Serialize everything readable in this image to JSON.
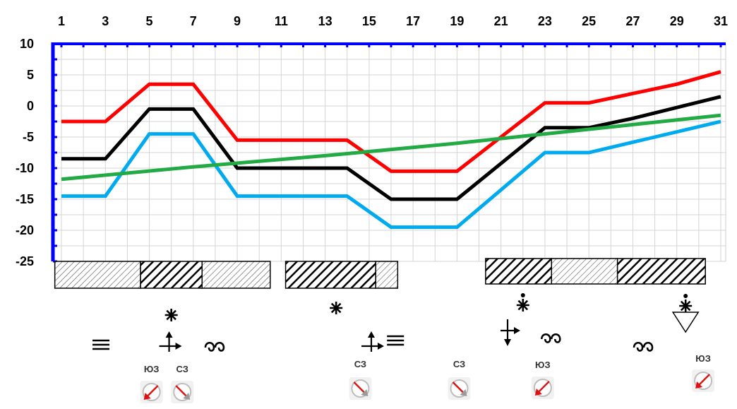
{
  "chart_data": {
    "type": "line",
    "title": "",
    "xlabel": "",
    "ylabel": "",
    "x": [
      1,
      3,
      5,
      7,
      9,
      11,
      13,
      15,
      17,
      19,
      21,
      23,
      25,
      27,
      29,
      31
    ],
    "x_tick_labels": [
      "1",
      "3",
      "5",
      "7",
      "9",
      "11",
      "13",
      "15",
      "17",
      "19",
      "21",
      "23",
      "25",
      "27",
      "29",
      "31"
    ],
    "xlim": [
      1,
      31
    ],
    "ylim": [
      -25,
      10
    ],
    "y_ticks": [
      10,
      5,
      0,
      -5,
      -10,
      -15,
      -20,
      -25
    ],
    "y_tick_labels": [
      "10",
      "5",
      "0",
      "-5",
      "-10",
      "-15",
      "-20",
      "-25"
    ],
    "grid": true,
    "legend": "none",
    "series": [
      {
        "color": "#ff0000",
        "points": [
          [
            1,
            -2.5
          ],
          [
            3,
            -2.5
          ],
          [
            5,
            3.5
          ],
          [
            7,
            3.5
          ],
          [
            9,
            -5.5
          ],
          [
            11,
            -5.5
          ],
          [
            13,
            -5.5
          ],
          [
            14,
            -5.5
          ],
          [
            16,
            -10.5
          ],
          [
            19,
            -10.5
          ],
          [
            23,
            0.5
          ],
          [
            25,
            0.5
          ],
          [
            29,
            3.5
          ],
          [
            31,
            5.5
          ]
        ]
      },
      {
        "color": "#000000",
        "points": [
          [
            1,
            -8.5
          ],
          [
            3,
            -8.5
          ],
          [
            5,
            -0.5
          ],
          [
            7,
            -0.5
          ],
          [
            9,
            -10
          ],
          [
            11,
            -10
          ],
          [
            13,
            -10
          ],
          [
            14,
            -10
          ],
          [
            16,
            -15
          ],
          [
            19,
            -15
          ],
          [
            23,
            -3.5
          ],
          [
            25,
            -3.5
          ],
          [
            27,
            -2
          ],
          [
            31,
            1.5
          ]
        ]
      },
      {
        "color": "#00aaee",
        "points": [
          [
            1,
            -14.5
          ],
          [
            3,
            -14.5
          ],
          [
            5,
            -4.5
          ],
          [
            7,
            -4.5
          ],
          [
            9,
            -14.5
          ],
          [
            11,
            -14.5
          ],
          [
            13,
            -14.5
          ],
          [
            14,
            -14.5
          ],
          [
            16,
            -19.5
          ],
          [
            19,
            -19.5
          ],
          [
            23,
            -7.5
          ],
          [
            25,
            -7.5
          ],
          [
            28,
            -5
          ],
          [
            31,
            -2.5
          ]
        ]
      },
      {
        "color": "#22aa44",
        "points": [
          [
            1,
            -11.8
          ],
          [
            7,
            -9.8
          ],
          [
            13,
            -8
          ],
          [
            19,
            -6
          ],
          [
            23,
            -4.5
          ],
          [
            27,
            -3
          ],
          [
            31,
            -1.5
          ]
        ]
      }
    ],
    "weather_bars": [
      {
        "start": 0.7,
        "end": 4.6,
        "pattern": "light"
      },
      {
        "start": 4.6,
        "end": 7.4,
        "pattern": "dark"
      },
      {
        "start": 7.4,
        "end": 10.5,
        "pattern": "light"
      },
      {
        "start": 11.2,
        "end": 15.3,
        "pattern": "dark"
      },
      {
        "start": 15.3,
        "end": 16.3,
        "pattern": "light"
      },
      {
        "start": 20.3,
        "end": 23.3,
        "pattern": "dark"
      },
      {
        "start": 23.3,
        "end": 26.3,
        "pattern": "light"
      },
      {
        "start": 26.3,
        "end": 30.3,
        "pattern": "dark"
      }
    ],
    "weather_icons": [
      {
        "x": 2.8,
        "type": "fog"
      },
      {
        "x": 6,
        "type": "snow"
      },
      {
        "x": 5.9,
        "type": "temp-rise"
      },
      {
        "x": 8,
        "type": "drift"
      },
      {
        "x": 13.5,
        "type": "snow"
      },
      {
        "x": 15.1,
        "type": "temp-rise"
      },
      {
        "x": 16.2,
        "type": "fog"
      },
      {
        "x": 22,
        "type": "snow"
      },
      {
        "x": 21.3,
        "type": "temp-fall"
      },
      {
        "x": 23.3,
        "type": "drift"
      },
      {
        "x": 29.4,
        "type": "snow-shower"
      },
      {
        "x": 27.5,
        "type": "drift"
      }
    ],
    "wind": [
      {
        "x": 5.1,
        "label": "ЮЗ"
      },
      {
        "x": 6.5,
        "label": "СЗ"
      },
      {
        "x": 14.6,
        "label": "СЗ"
      },
      {
        "x": 19.1,
        "label": "СЗ"
      },
      {
        "x": 22.9,
        "label": "ЮЗ"
      },
      {
        "x": 30.2,
        "label": "ЮЗ"
      }
    ]
  }
}
